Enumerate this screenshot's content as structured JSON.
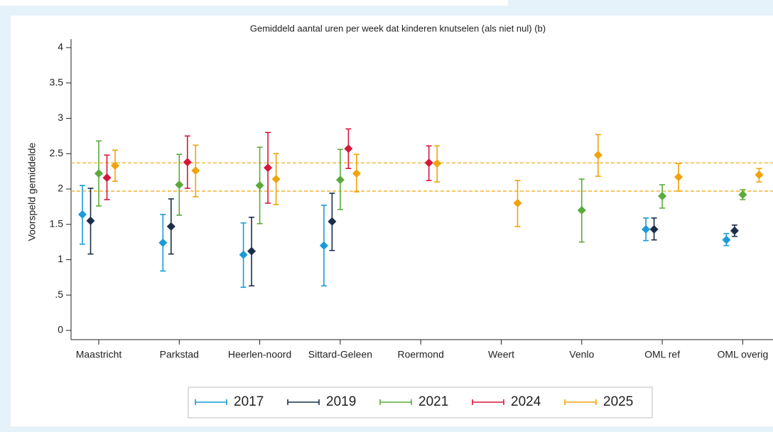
{
  "chart_data": {
    "type": "errorbar",
    "title": "Gemiddeld aantal uren per week dat kinderen knutselen (als niet nul) (b)",
    "y_label": "Voorspeld gemiddelde",
    "categories": [
      "Maastricht",
      "Parkstad",
      "Heerlen-noord",
      "Sittard-Geleen",
      "Roermond",
      "Weert",
      "Venlo",
      "OML ref",
      "OML overig"
    ],
    "ylim": [
      0,
      4
    ],
    "yticks": [
      0,
      {
        "value": 0.5,
        "label": ".5"
      },
      1,
      1.5,
      2,
      2.5,
      3,
      3.5,
      4
    ],
    "reference_lines": [
      2.37,
      1.97
    ],
    "reference_color": "#f0a30a",
    "series": [
      {
        "name": "2017",
        "color": "#1a9bd7",
        "values": [
          1.64,
          1.24,
          1.07,
          1.2,
          null,
          null,
          null,
          1.43,
          1.28
        ],
        "lower": [
          1.22,
          0.84,
          0.61,
          0.63,
          null,
          null,
          null,
          1.27,
          1.2
        ],
        "upper": [
          2.05,
          1.64,
          1.52,
          1.77,
          null,
          null,
          null,
          1.59,
          1.37
        ]
      },
      {
        "name": "2019",
        "color": "#1a2e4a",
        "values": [
          1.55,
          1.47,
          1.12,
          1.54,
          null,
          null,
          null,
          1.43,
          1.41
        ],
        "lower": [
          1.08,
          1.08,
          0.63,
          1.13,
          null,
          null,
          null,
          1.28,
          1.33
        ],
        "upper": [
          2.01,
          1.86,
          1.6,
          1.94,
          null,
          null,
          null,
          1.59,
          1.49
        ]
      },
      {
        "name": "2021",
        "color": "#5aab3a",
        "values": [
          2.22,
          2.06,
          2.05,
          2.13,
          null,
          null,
          1.7,
          1.9,
          1.92
        ],
        "lower": [
          1.76,
          1.63,
          1.51,
          1.71,
          null,
          null,
          1.25,
          1.73,
          1.85
        ],
        "upper": [
          2.68,
          2.49,
          2.59,
          2.56,
          null,
          null,
          2.14,
          2.06,
          1.99
        ]
      },
      {
        "name": "2024",
        "color": "#d6163b",
        "values": [
          2.16,
          2.38,
          2.3,
          2.57,
          2.37,
          null,
          null,
          null,
          null
        ],
        "lower": [
          1.85,
          2.01,
          1.8,
          2.29,
          2.12,
          null,
          null,
          null,
          null
        ],
        "upper": [
          2.48,
          2.75,
          2.8,
          2.85,
          2.61,
          null,
          null,
          null,
          null
        ]
      },
      {
        "name": "2025",
        "color": "#f0a30a",
        "values": [
          2.33,
          2.26,
          2.14,
          2.22,
          2.36,
          1.8,
          2.48,
          2.17,
          2.2
        ],
        "lower": [
          2.11,
          1.89,
          1.78,
          1.96,
          2.1,
          1.47,
          2.18,
          1.97,
          2.1
        ],
        "upper": [
          2.55,
          2.62,
          2.5,
          2.49,
          2.61,
          2.12,
          2.77,
          2.36,
          2.29
        ]
      }
    ]
  }
}
